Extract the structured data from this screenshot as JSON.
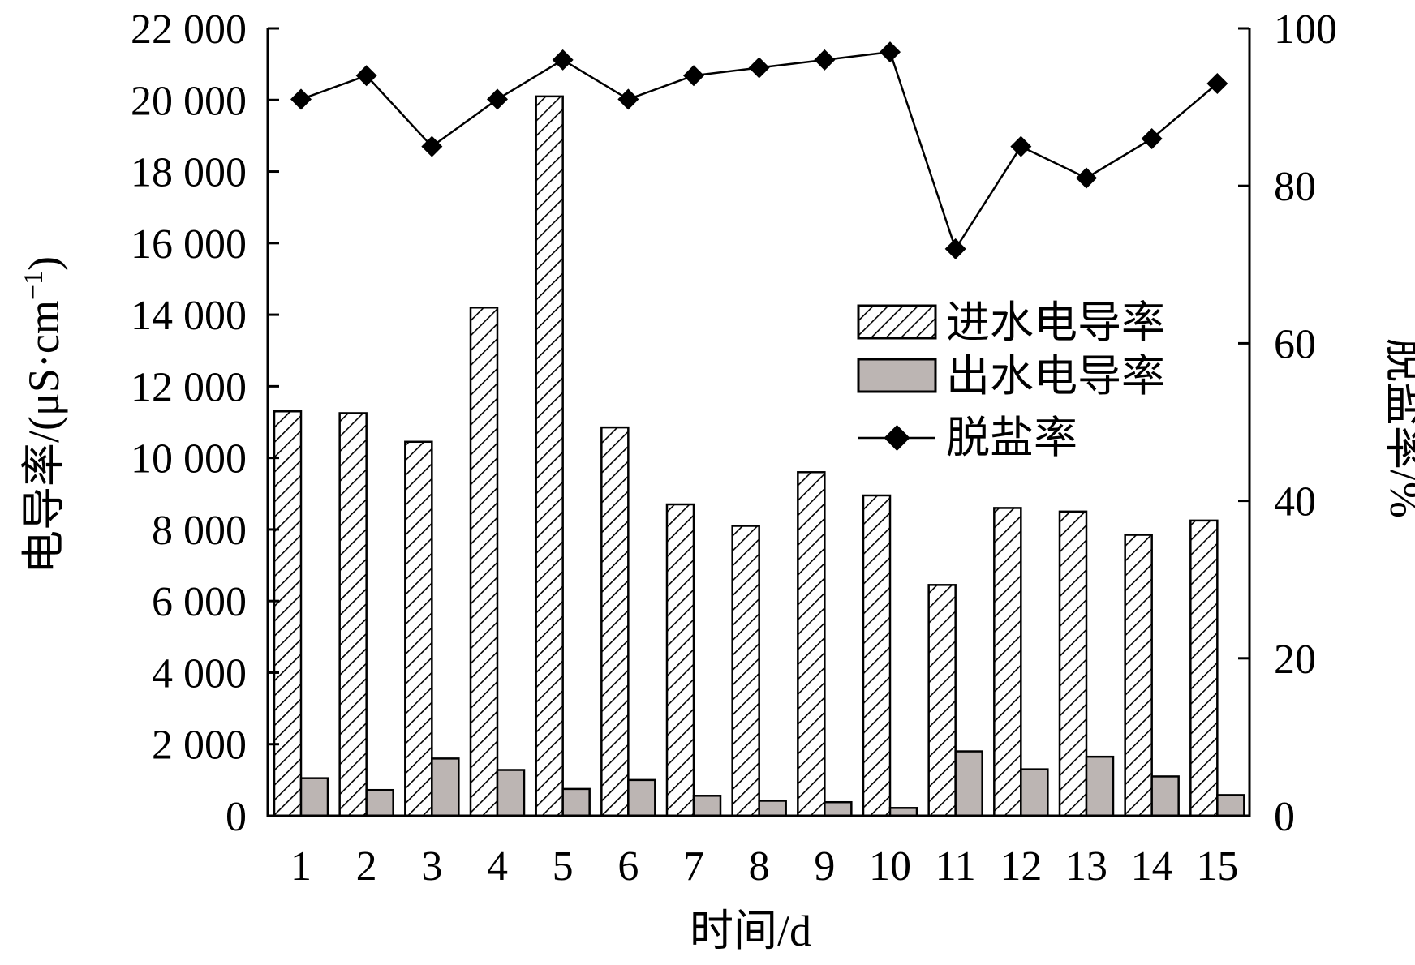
{
  "chart_data": {
    "type": "bar",
    "categories": [
      "1",
      "2",
      "3",
      "4",
      "5",
      "6",
      "7",
      "8",
      "9",
      "10",
      "11",
      "12",
      "13",
      "14",
      "15"
    ],
    "series": [
      {
        "name": "进水电导率",
        "type": "bar",
        "axis": "left",
        "pattern": "hatch",
        "values": [
          11300,
          11250,
          10450,
          14200,
          20100,
          10850,
          8700,
          8100,
          9600,
          8950,
          6450,
          8600,
          8500,
          7850,
          8250
        ]
      },
      {
        "name": "出水电导率",
        "type": "bar",
        "axis": "left",
        "color": "#bcb5b3",
        "values": [
          1050,
          720,
          1600,
          1280,
          750,
          1000,
          560,
          420,
          380,
          220,
          1800,
          1300,
          1650,
          1100,
          580
        ]
      },
      {
        "name": "脱盐率",
        "type": "line",
        "axis": "right",
        "marker": "diamond",
        "values": [
          91,
          94,
          85,
          91,
          96,
          91,
          94,
          95,
          96,
          97,
          72,
          85,
          81,
          86,
          93
        ]
      }
    ],
    "xlabel": "时间/d",
    "ylabel": "电导率/(μS·cm",
    "ylabel_superscript": "−1",
    "ylabel_close": ")",
    "ylabel_right": "脱盐率/%",
    "ylim": [
      0,
      22000
    ],
    "y_ticks": [
      {
        "value": 0,
        "label": "0"
      },
      {
        "value": 2000,
        "label": "2 000"
      },
      {
        "value": 4000,
        "label": "4 000"
      },
      {
        "value": 6000,
        "label": "6 000"
      },
      {
        "value": 8000,
        "label": "8 000"
      },
      {
        "value": 10000,
        "label": "10 000"
      },
      {
        "value": 12000,
        "label": "12 000"
      },
      {
        "value": 14000,
        "label": "14 000"
      },
      {
        "value": 16000,
        "label": "16 000"
      },
      {
        "value": 18000,
        "label": "18 000"
      },
      {
        "value": 20000,
        "label": "20 000"
      },
      {
        "value": 22000,
        "label": "22 000"
      }
    ],
    "ylim_right": [
      0,
      100
    ],
    "y_ticks_right": [
      {
        "value": 0,
        "label": "0"
      },
      {
        "value": 20,
        "label": "20"
      },
      {
        "value": 40,
        "label": "40"
      },
      {
        "value": 60,
        "label": "60"
      },
      {
        "value": 80,
        "label": "80"
      },
      {
        "value": 100,
        "label": "100"
      }
    ],
    "legend": {
      "placement": "right-middle",
      "entries": [
        "进水电导率",
        "出水电导率",
        "脱盐率"
      ]
    },
    "grid": false
  }
}
